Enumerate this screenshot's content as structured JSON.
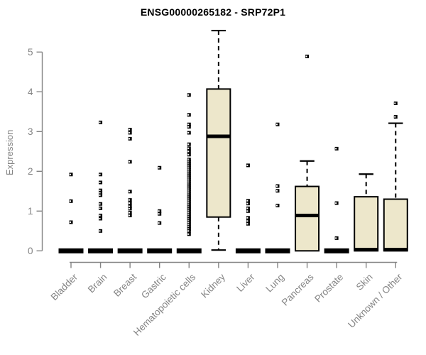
{
  "chart_data": {
    "type": "boxplot",
    "title": "ENSG00000265182 - SRP72P1",
    "ylabel": "Expression",
    "xlabel": "",
    "ylim": [
      0,
      5
    ],
    "y_ticks": [
      "0",
      "1",
      "2",
      "3",
      "4",
      "5"
    ],
    "grid": false,
    "legend": null,
    "colors": {
      "box_fill": "#EDE7CB",
      "box_line": "#000000",
      "axis": "#848484",
      "tick_label": "#848484",
      "title": "#000000",
      "background": "#FFFFFF"
    },
    "categories": [
      {
        "label": "Bladder",
        "stats": {
          "whisker_low": 0,
          "q1": 0,
          "median": 0,
          "q3": 0,
          "whisker_high": 0
        },
        "outliers": [
          1.92,
          1.25,
          0.72
        ]
      },
      {
        "label": "Brain",
        "stats": {
          "whisker_low": 0,
          "q1": 0,
          "median": 0,
          "q3": 0,
          "whisker_high": 0
        },
        "outliers": [
          3.23,
          1.92,
          1.72,
          1.52,
          1.46,
          1.4,
          1.18,
          1.07,
          0.89,
          0.81,
          0.5
        ]
      },
      {
        "label": "Breast",
        "stats": {
          "whisker_low": 0,
          "q1": 0,
          "median": 0,
          "q3": 0,
          "whisker_high": 0
        },
        "outliers": [
          3.05,
          2.97,
          2.82,
          2.24,
          1.49,
          1.28,
          1.2,
          1.12,
          1.06,
          0.96,
          0.89
        ]
      },
      {
        "label": "Gastric",
        "stats": {
          "whisker_low": 0,
          "q1": 0,
          "median": 0,
          "q3": 0,
          "whisker_high": 0
        },
        "outliers": [
          2.09,
          1.0,
          0.93,
          0.7
        ]
      },
      {
        "label": "Hematopoietic cells",
        "stats": {
          "whisker_low": 0,
          "q1": 0,
          "median": 0,
          "q3": 0,
          "whisker_high": 0
        },
        "outliers": [
          3.92,
          3.42,
          3.18,
          3.12,
          2.97,
          2.68,
          2.58,
          2.5,
          2.42,
          2.3,
          2.25,
          2.2,
          2.15,
          2.1,
          2.05,
          2.0,
          1.95,
          1.9,
          1.85,
          1.8,
          1.75,
          1.7,
          1.65,
          1.6,
          1.55,
          1.5,
          1.45,
          1.4,
          1.35,
          1.3,
          1.25,
          1.2,
          1.15,
          1.1,
          1.05,
          1.0,
          0.95,
          0.9,
          0.85,
          0.8,
          0.75,
          0.7,
          0.65,
          0.6,
          0.55,
          0.5,
          0.42
        ]
      },
      {
        "label": "Kidney",
        "stats": {
          "whisker_low": 0.02,
          "q1": 0.85,
          "median": 2.88,
          "q3": 4.07,
          "whisker_high": 5.54
        },
        "outliers": []
      },
      {
        "label": "Liver",
        "stats": {
          "whisker_low": 0,
          "q1": 0,
          "median": 0,
          "q3": 0,
          "whisker_high": 0
        },
        "outliers": [
          2.15,
          1.26,
          1.19,
          1.07,
          1.0,
          0.83,
          0.75,
          0.68
        ]
      },
      {
        "label": "Lung",
        "stats": {
          "whisker_low": 0,
          "q1": 0,
          "median": 0,
          "q3": 0,
          "whisker_high": 0
        },
        "outliers": [
          3.18,
          1.63,
          1.51,
          1.14
        ]
      },
      {
        "label": "Pancreas",
        "stats": {
          "whisker_low": 0,
          "q1": 0,
          "median": 0.89,
          "q3": 1.62,
          "whisker_high": 2.26
        },
        "outliers": [
          4.89
        ]
      },
      {
        "label": "Prostate",
        "stats": {
          "whisker_low": 0,
          "q1": 0,
          "median": 0,
          "q3": 0,
          "whisker_high": 0
        },
        "outliers": [
          2.57,
          1.2,
          0.32
        ]
      },
      {
        "label": "Skin",
        "stats": {
          "whisker_low": 0,
          "q1": 0,
          "median": 0.03,
          "q3": 1.36,
          "whisker_high": 1.93
        },
        "outliers": []
      },
      {
        "label": "Unknown / Other",
        "stats": {
          "whisker_low": 0,
          "q1": 0,
          "median": 0.03,
          "q3": 1.3,
          "whisker_high": 3.21
        },
        "outliers": [
          3.71,
          3.37
        ]
      }
    ]
  }
}
